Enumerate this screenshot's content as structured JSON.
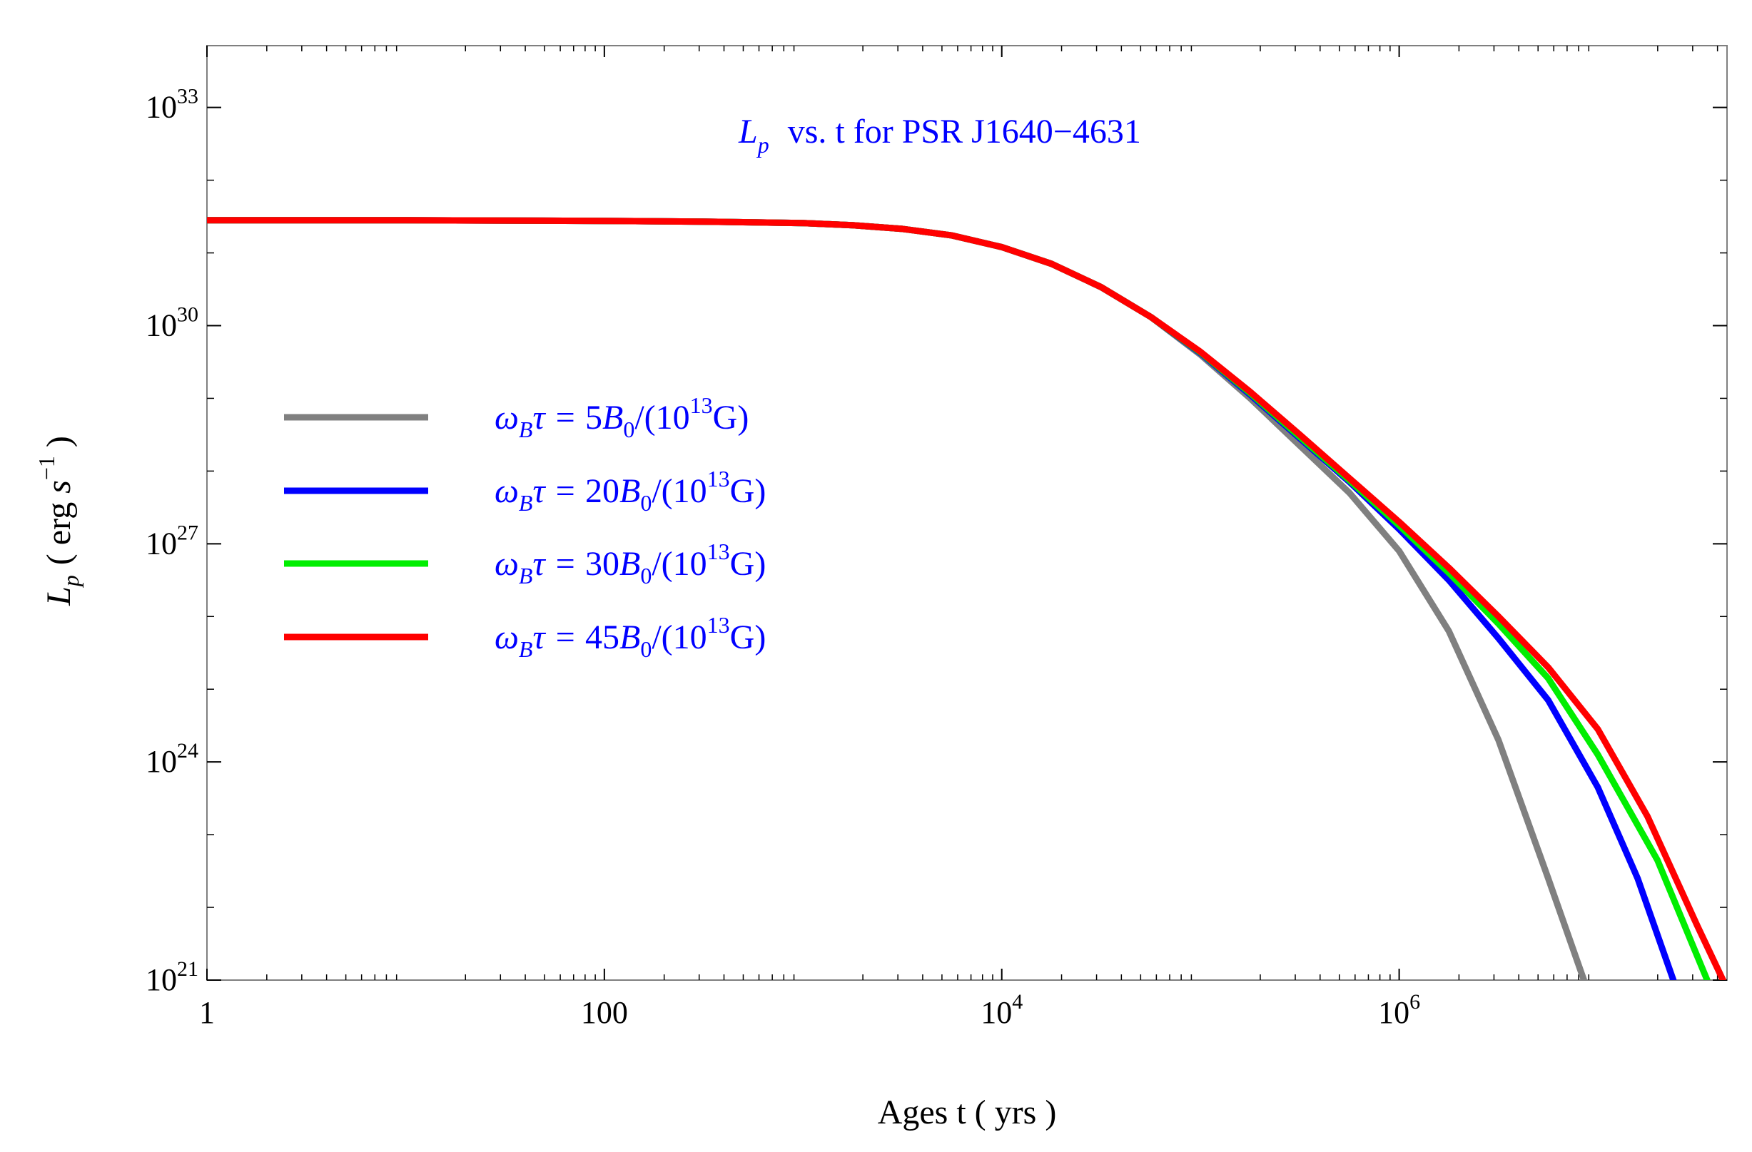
{
  "chart_data": {
    "type": "line",
    "title": "L_p vs. t for PSR J1640-4631",
    "title_parts": {
      "symbol": "L",
      "subscript": "p",
      "rest": "vs. t for PSR J1640−4631"
    },
    "title_color": "#0000ff",
    "xlabel": "Ages t  ( yrs )",
    "ylabel_parts": {
      "symbol": "L",
      "subscript": "p",
      "open": "( erg ",
      "unit_sym": "s",
      "exp": "−1",
      "close": " )"
    },
    "x_scale": "log",
    "y_scale": "log",
    "xlim_log10": [
      0,
      7.65
    ],
    "ylim_log10": [
      21,
      33.85
    ],
    "x_ticks": [
      {
        "log10": 0,
        "base": "1",
        "exp": ""
      },
      {
        "log10": 2,
        "base": "100",
        "exp": ""
      },
      {
        "log10": 4,
        "base": "10",
        "exp": "4"
      },
      {
        "log10": 6,
        "base": "10",
        "exp": "6"
      }
    ],
    "y_ticks": [
      {
        "log10": 21,
        "base": "10",
        "exp": "21"
      },
      {
        "log10": 24,
        "base": "10",
        "exp": "24"
      },
      {
        "log10": 27,
        "base": "10",
        "exp": "27"
      },
      {
        "log10": 30,
        "base": "10",
        "exp": "30"
      },
      {
        "log10": 33,
        "base": "10",
        "exp": "33"
      }
    ],
    "legend_position": "left-center",
    "series": [
      {
        "name": "ωBτ = 5B0/(10^13 G)",
        "label_parts": {
          "coef": "5",
          "exp": "13"
        },
        "color": "#808080",
        "log_x": [
          0,
          1,
          2,
          2.5,
          3,
          3.25,
          3.5,
          3.75,
          4,
          4.25,
          4.5,
          4.75,
          5,
          5.25,
          5.5,
          5.75,
          6,
          6.25,
          6.5,
          6.75,
          6.93
        ],
        "log_y": [
          31.45,
          31.45,
          31.44,
          31.43,
          31.41,
          31.38,
          31.33,
          31.24,
          31.08,
          30.85,
          30.53,
          30.12,
          29.6,
          29.0,
          28.35,
          27.7,
          26.9,
          25.8,
          24.3,
          22.4,
          21.0
        ]
      },
      {
        "name": "ωBτ = 20B0/(10^13 G)",
        "label_parts": {
          "coef": "20",
          "exp": "13"
        },
        "color": "#0000ff",
        "log_x": [
          0,
          1,
          2,
          2.5,
          3,
          3.25,
          3.5,
          3.75,
          4,
          4.25,
          4.5,
          4.75,
          5,
          5.25,
          5.5,
          5.75,
          6,
          6.25,
          6.5,
          6.75,
          7,
          7.2,
          7.38
        ],
        "log_y": [
          31.45,
          31.45,
          31.44,
          31.43,
          31.41,
          31.38,
          31.33,
          31.24,
          31.08,
          30.85,
          30.53,
          30.12,
          29.62,
          29.05,
          28.45,
          27.85,
          27.2,
          26.5,
          25.7,
          24.85,
          23.65,
          22.4,
          21.0
        ]
      },
      {
        "name": "ωBτ = 30B0/(10^13 G)",
        "label_parts": {
          "coef": "30",
          "exp": "13"
        },
        "color": "#00ee00",
        "log_x": [
          0,
          1,
          2,
          2.5,
          3,
          3.25,
          3.5,
          3.75,
          4,
          4.25,
          4.5,
          4.75,
          5,
          5.25,
          5.5,
          5.75,
          6,
          6.25,
          6.5,
          6.75,
          7,
          7.3,
          7.55
        ],
        "log_y": [
          31.45,
          31.45,
          31.44,
          31.43,
          31.41,
          31.38,
          31.33,
          31.24,
          31.08,
          30.85,
          30.53,
          30.12,
          29.63,
          29.07,
          28.47,
          27.87,
          27.25,
          26.6,
          25.9,
          25.15,
          24.1,
          22.65,
          21.0
        ]
      },
      {
        "name": "ωBτ = 45B0/(10^13 G)",
        "label_parts": {
          "coef": "45",
          "exp": "13"
        },
        "color": "#ff0000",
        "log_x": [
          0,
          1,
          2,
          2.5,
          3,
          3.25,
          3.5,
          3.75,
          4,
          4.25,
          4.5,
          4.75,
          5,
          5.25,
          5.5,
          5.75,
          6,
          6.25,
          6.5,
          6.75,
          7,
          7.25,
          7.5,
          7.63
        ],
        "log_y": [
          31.45,
          31.45,
          31.44,
          31.43,
          31.41,
          31.38,
          31.33,
          31.24,
          31.08,
          30.85,
          30.53,
          30.12,
          29.64,
          29.09,
          28.5,
          27.9,
          27.3,
          26.67,
          26.0,
          25.3,
          24.45,
          23.25,
          21.75,
          21.0
        ]
      }
    ]
  }
}
